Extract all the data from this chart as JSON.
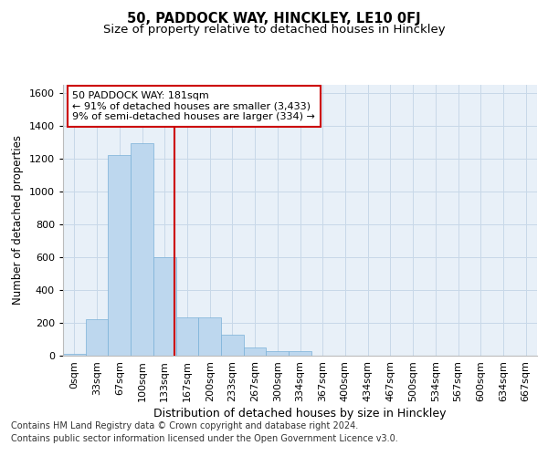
{
  "title1": "50, PADDOCK WAY, HINCKLEY, LE10 0FJ",
  "title2": "Size of property relative to detached houses in Hinckley",
  "xlabel": "Distribution of detached houses by size in Hinckley",
  "ylabel": "Number of detached properties",
  "bar_labels": [
    "0sqm",
    "33sqm",
    "67sqm",
    "100sqm",
    "133sqm",
    "167sqm",
    "200sqm",
    "233sqm",
    "267sqm",
    "300sqm",
    "334sqm",
    "367sqm",
    "400sqm",
    "434sqm",
    "467sqm",
    "500sqm",
    "534sqm",
    "567sqm",
    "600sqm",
    "634sqm",
    "667sqm"
  ],
  "bar_values": [
    10,
    220,
    1220,
    1290,
    600,
    235,
    235,
    130,
    50,
    25,
    25,
    0,
    0,
    0,
    0,
    0,
    0,
    0,
    0,
    0,
    0
  ],
  "bar_color": "#bdd7ee",
  "bar_edge_color": "#7ab0d8",
  "grid_color": "#c8d8e8",
  "bg_color": "#e8f0f8",
  "vline_x": 4.42,
  "vline_color": "#cc0000",
  "annotation_text": "50 PADDOCK WAY: 181sqm\n← 91% of detached houses are smaller (3,433)\n9% of semi-detached houses are larger (334) →",
  "annotation_box_color": "#ffffff",
  "annotation_border_color": "#cc0000",
  "footnote1": "Contains HM Land Registry data © Crown copyright and database right 2024.",
  "footnote2": "Contains public sector information licensed under the Open Government Licence v3.0.",
  "ylim": [
    0,
    1650
  ],
  "yticks": [
    0,
    200,
    400,
    600,
    800,
    1000,
    1200,
    1400,
    1600
  ],
  "title1_fontsize": 10.5,
  "title2_fontsize": 9.5,
  "xlabel_fontsize": 9,
  "ylabel_fontsize": 8.5,
  "tick_fontsize": 8,
  "annotation_fontsize": 8,
  "footnote_fontsize": 7
}
